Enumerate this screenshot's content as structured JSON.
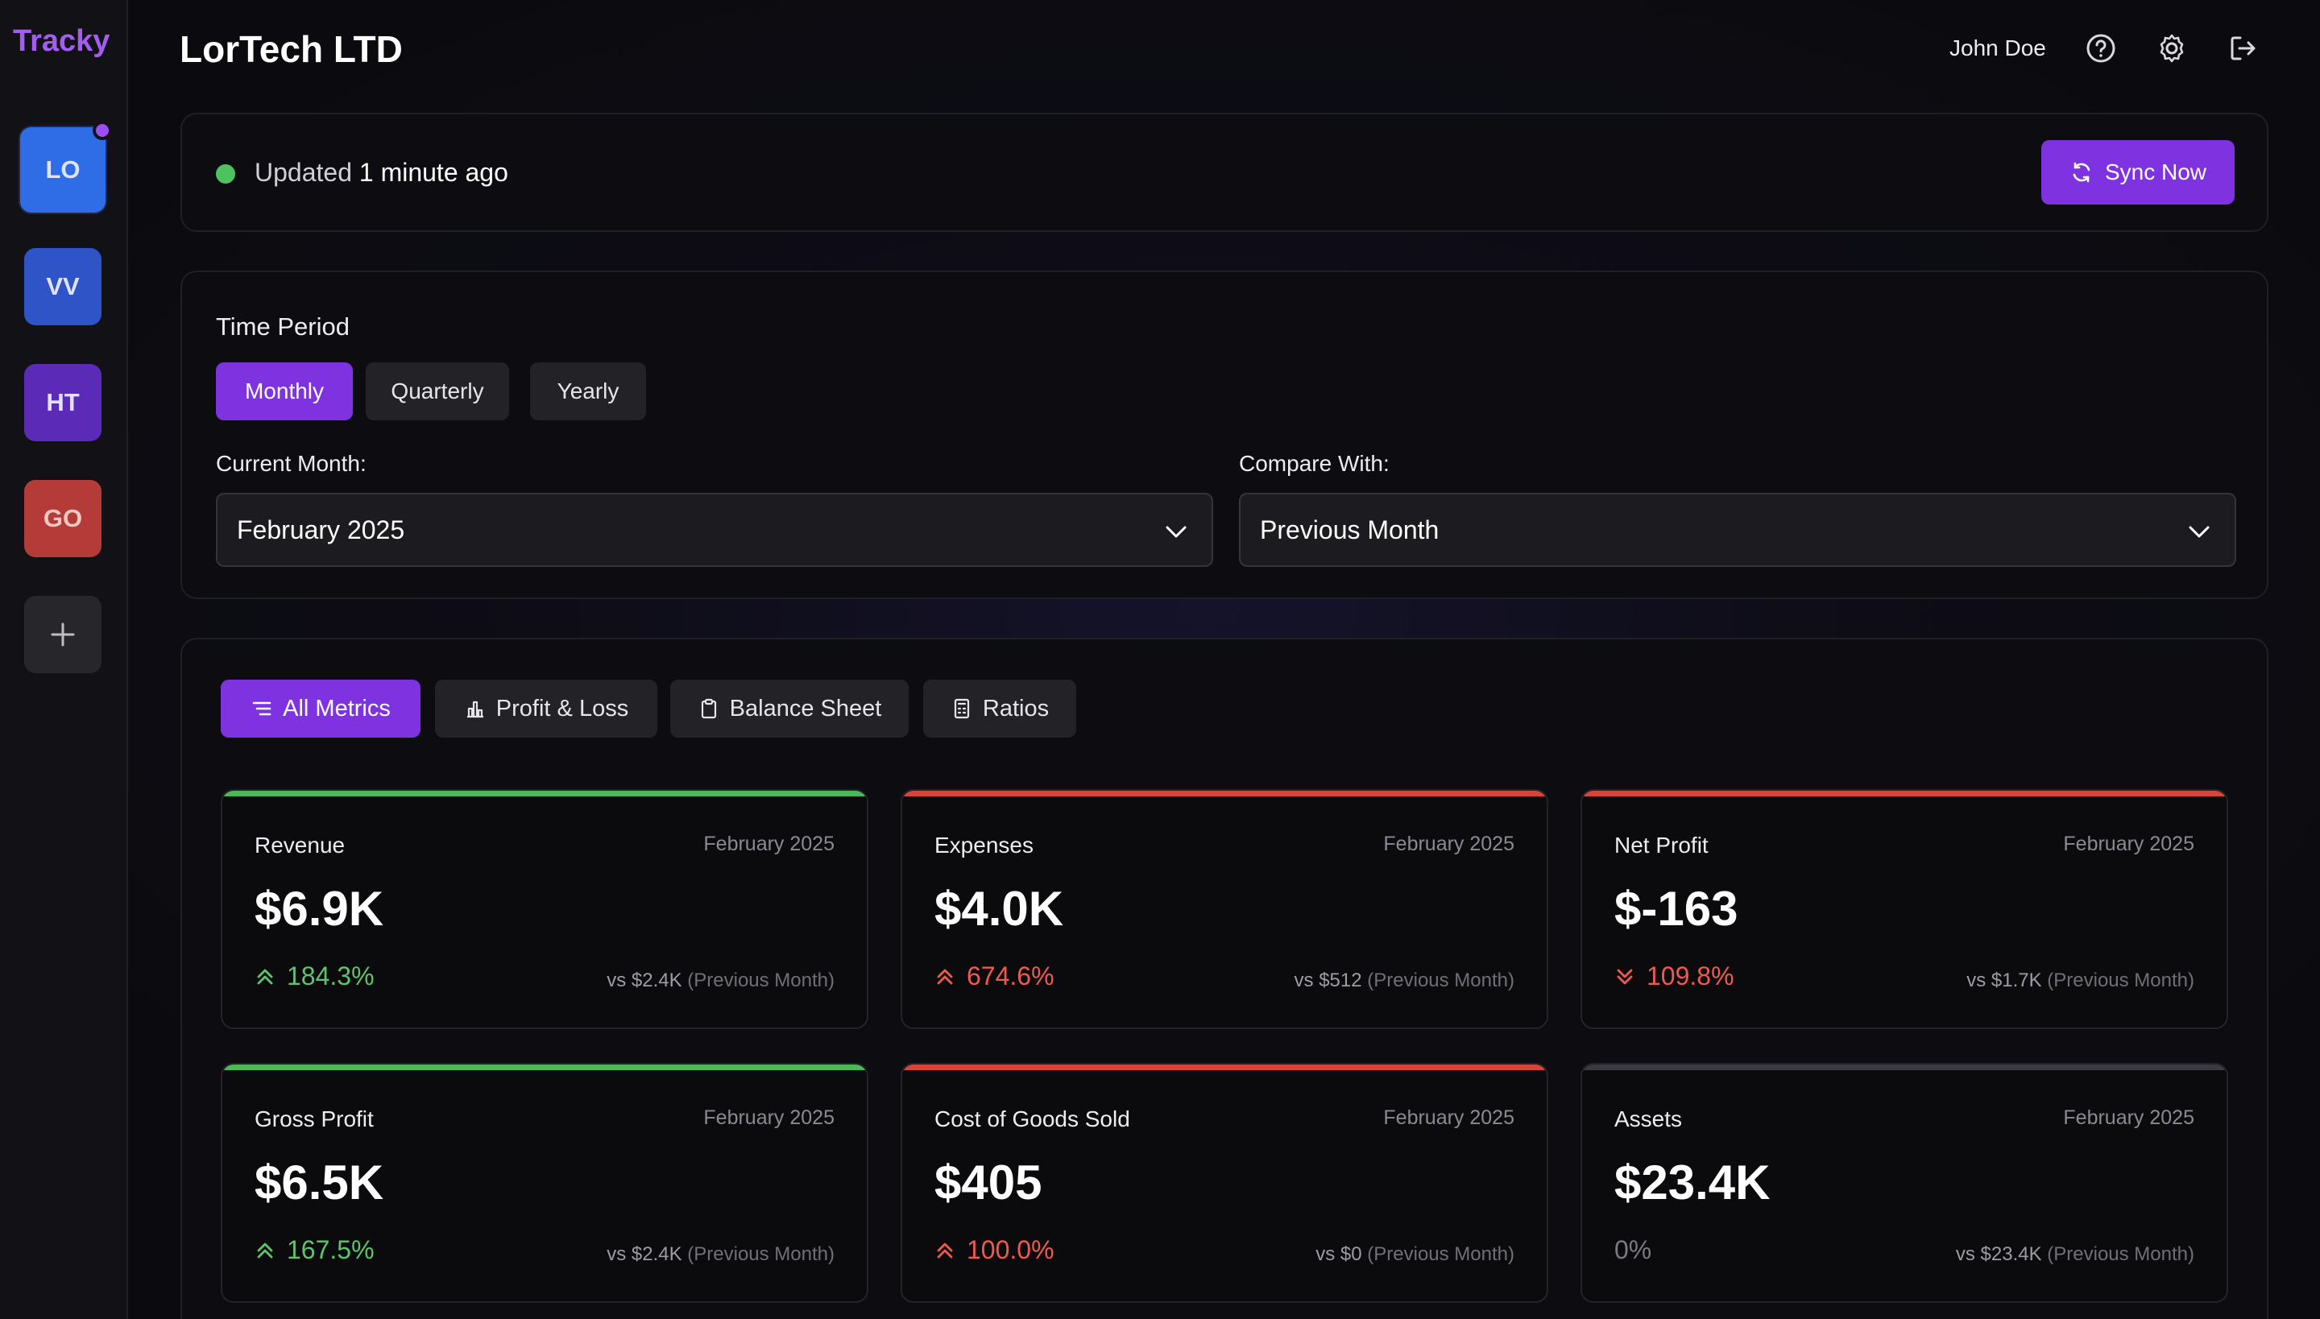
{
  "sidebar": {
    "brand": "Tracky",
    "orgs": [
      {
        "initials": "LO",
        "color": "#2f6de6",
        "active": true
      },
      {
        "initials": "VV",
        "color": "#2f54c8"
      },
      {
        "initials": "HT",
        "color": "#5b2ab6"
      },
      {
        "initials": "GO",
        "color": "#b53b39"
      }
    ],
    "add_icon": "plus-icon"
  },
  "header": {
    "title": "LorTech LTD",
    "user_name": "John Doe",
    "icons": [
      "help-icon",
      "gear-icon",
      "logout-icon"
    ]
  },
  "status": {
    "prefix": "Updated",
    "time": "1 minute ago",
    "sync_label": "Sync Now",
    "status_color": "#4cc35c"
  },
  "time_period": {
    "heading": "Time Period",
    "options": [
      "Monthly",
      "Quarterly",
      "Yearly"
    ],
    "selected": "Monthly",
    "current_label": "Current Month:",
    "current_value": "February 2025",
    "compare_label": "Compare With:",
    "compare_value": "Previous Month"
  },
  "metric_tabs": [
    "All Metrics",
    "Profit & Loss",
    "Balance Sheet",
    "Ratios"
  ],
  "cards": [
    {
      "name": "Revenue",
      "date": "February 2025",
      "value": "$6.9K",
      "change": "184.3%",
      "trend": "up",
      "tone": "green",
      "vs": "vs $2.4K",
      "period": "(Previous Month)"
    },
    {
      "name": "Expenses",
      "date": "February 2025",
      "value": "$4.0K",
      "change": "674.6%",
      "trend": "up",
      "tone": "red",
      "vs": "vs $512",
      "period": "(Previous Month)"
    },
    {
      "name": "Net Profit",
      "date": "February 2025",
      "value": "$-163",
      "change": "109.8%",
      "trend": "down",
      "tone": "red",
      "vs": "vs $1.7K",
      "period": "(Previous Month)"
    },
    {
      "name": "Gross Profit",
      "date": "February 2025",
      "value": "$6.5K",
      "change": "167.5%",
      "trend": "up",
      "tone": "green",
      "vs": "vs $2.4K",
      "period": "(Previous Month)"
    },
    {
      "name": "Cost of Goods Sold",
      "date": "February 2025",
      "value": "$405",
      "change": "100.0%",
      "trend": "up",
      "tone": "red",
      "vs": "vs $0",
      "period": "(Previous Month)"
    },
    {
      "name": "Assets",
      "date": "February 2025",
      "value": "$23.4K",
      "change": "0%",
      "trend": "flat",
      "tone": "gray",
      "vs": "vs $23.4K",
      "period": "(Previous Month)"
    }
  ],
  "colors": {
    "accent": "#7e32e0",
    "positive": "#5fc46a",
    "negative": "#ef5a4f",
    "neutral": "#3a3a40"
  }
}
